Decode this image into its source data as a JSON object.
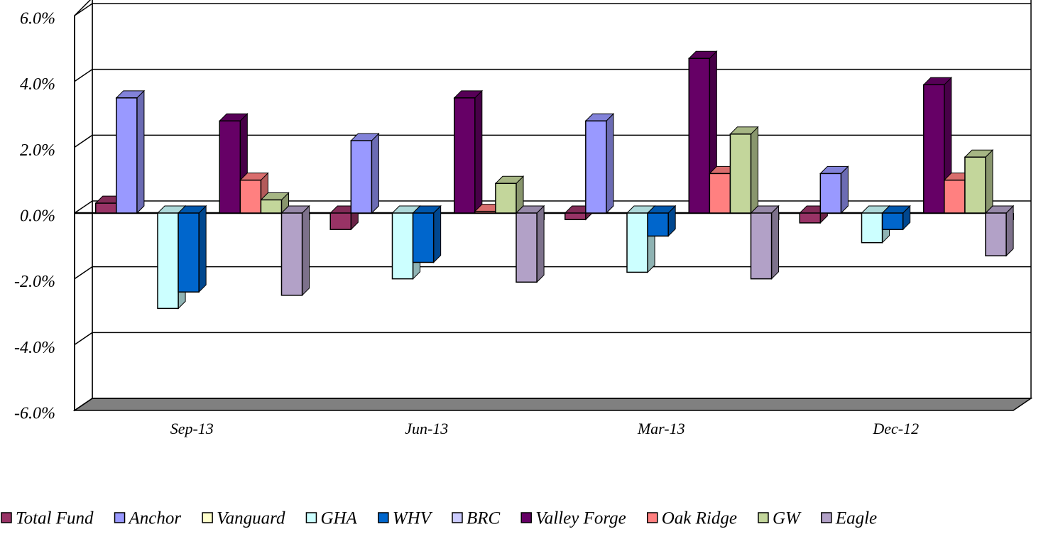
{
  "chart_data": {
    "type": "bar3d",
    "categories": [
      "Sep-13",
      "Jun-13",
      "Mar-13",
      "Dec-12"
    ],
    "series": [
      {
        "name": "Total Fund",
        "color": "#993366",
        "values": [
          0.3,
          -0.5,
          -0.2,
          -0.3
        ]
      },
      {
        "name": "Anchor",
        "color": "#9999ff",
        "values": [
          3.5,
          2.2,
          2.8,
          1.2
        ]
      },
      {
        "name": "Vanguard",
        "color": "#ffffcc",
        "values": [
          null,
          null,
          null,
          null
        ]
      },
      {
        "name": "GHA",
        "color": "#ccffff",
        "values": [
          -2.9,
          -2.0,
          -1.8,
          -0.9
        ]
      },
      {
        "name": "WHV",
        "color": "#0066cc",
        "values": [
          -2.4,
          -1.5,
          -0.7,
          -0.5
        ]
      },
      {
        "name": "BRC",
        "color": "#ccccff",
        "values": [
          null,
          null,
          null,
          null
        ]
      },
      {
        "name": "Valley Forge",
        "color": "#660066",
        "values": [
          2.8,
          3.5,
          4.7,
          3.9
        ]
      },
      {
        "name": "Oak Ridge",
        "color": "#ff8080",
        "values": [
          1.0,
          0.05,
          1.2,
          1.0
        ]
      },
      {
        "name": "GW",
        "color": "#c3d69b",
        "values": [
          0.4,
          0.9,
          2.4,
          1.7
        ]
      },
      {
        "name": "Eagle",
        "color": "#b2a1c7",
        "values": [
          -2.5,
          -2.1,
          -2.0,
          -1.3
        ]
      }
    ],
    "ylim": [
      -6,
      6
    ],
    "yticks": [
      {
        "value": -6,
        "label": "-6.0%"
      },
      {
        "value": -4,
        "label": "-4.0%"
      },
      {
        "value": -2,
        "label": "-2.0%"
      },
      {
        "value": 0,
        "label": "0.0%"
      },
      {
        "value": 2,
        "label": "2.0%"
      },
      {
        "value": 4,
        "label": "4.0%"
      },
      {
        "value": 6,
        "label": "6.0%"
      }
    ],
    "grid": true
  }
}
